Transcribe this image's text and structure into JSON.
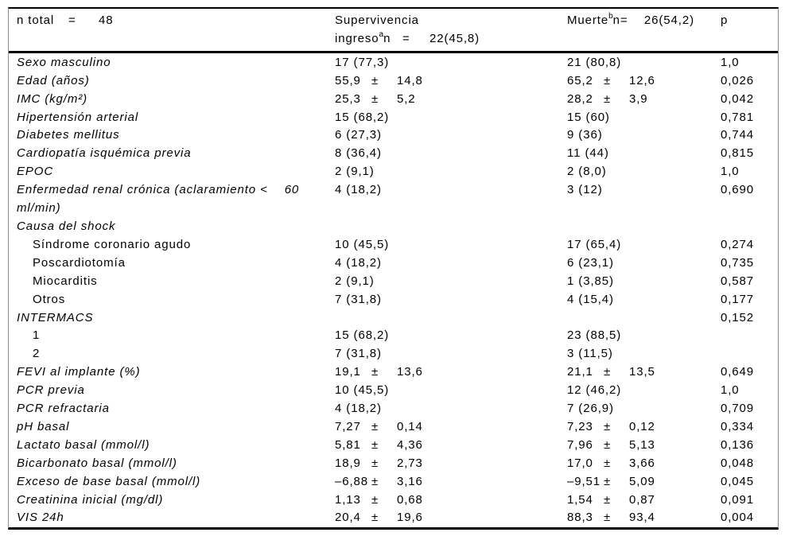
{
  "colors": {
    "background": "#ffffff",
    "text": "#000000",
    "heavy_rule": "#000000",
    "side_border": "#8f8f8f"
  },
  "table": {
    "header": {
      "col1": {
        "pre": "n total",
        "eq": "=",
        "val": "48"
      },
      "col2": {
        "line1": "Supervivencia",
        "pre": "ingreso",
        "sup": "a",
        "post": "n",
        "eq": "=",
        "val": "22(45,8)"
      },
      "col3": {
        "pre": "Muerte",
        "sup": "b",
        "post": "n",
        "eq": "=",
        "val": "26(54,2)"
      },
      "col4": "p"
    },
    "rows": [
      {
        "label": "Sexo masculino",
        "italic": true,
        "c1": "17 (77,3)",
        "c2": "21 (80,8)",
        "p": "1,0"
      },
      {
        "label": "Edad (años)",
        "italic": true,
        "c1": "55,9 ± 14,8",
        "c2": "65,2 ± 12,6",
        "p": "0,026"
      },
      {
        "label": "IMC (kg/m²)",
        "italic": true,
        "c1": "25,3 ± 5,2",
        "c2": "28,2 ± 3,9",
        "p": "0,042"
      },
      {
        "label": "Hipertensión arterial",
        "italic": true,
        "c1": "15 (68,2)",
        "c2": "15 (60)",
        "p": "0,781"
      },
      {
        "label": "Diabetes mellitus",
        "italic": true,
        "c1": "6 (27,3)",
        "c2": "9 (36)",
        "p": "0,744"
      },
      {
        "label": "Cardiopatía isquémica previa",
        "italic": true,
        "c1": "8 (36,4)",
        "c2": "11 (44)",
        "p": "0,815"
      },
      {
        "label": "EPOC",
        "italic": true,
        "c1": "2 (9,1)",
        "c2": "2 (8,0)",
        "p": "1,0"
      },
      {
        "label": "Enfermedad renal crónica (aclaramiento <  60\nml/min)",
        "italic": true,
        "c1": "4 (18,2)",
        "c2": "3 (12)",
        "p": "0,690"
      },
      {
        "label": "Causa del shock",
        "italic": true,
        "c1": "",
        "c2": "",
        "p": ""
      },
      {
        "label": "Síndrome coronario agudo",
        "indent": 1,
        "c1": "10 (45,5)",
        "c2": "17 (65,4)",
        "p": "0,274"
      },
      {
        "label": "Poscardiotomía",
        "indent": 1,
        "c1": "4 (18,2)",
        "c2": "6 (23,1)",
        "p": "0,735"
      },
      {
        "label": "Miocarditis",
        "indent": 1,
        "c1": "2 (9,1)",
        "c2": "1 (3,85)",
        "p": "0,587"
      },
      {
        "label": "Otros",
        "indent": 1,
        "c1": "7 (31,8)",
        "c2": "4 (15,4)",
        "p": "0,177"
      },
      {
        "label": "INTERMACS",
        "italic": true,
        "c1": "",
        "c2": "",
        "p": "0,152"
      },
      {
        "label": "1",
        "indent": 1,
        "c1": "15 (68,2)",
        "c2": "23 (88,5)",
        "p": ""
      },
      {
        "label": "2",
        "indent": 1,
        "c1": "7 (31,8)",
        "c2": "3 (11,5)",
        "p": ""
      },
      {
        "label": "FEVI al implante (%)",
        "italic": true,
        "c1": "19,1 ± 13,6",
        "c2": "21,1 ± 13,5",
        "p": "0,649"
      },
      {
        "label": "PCR previa",
        "italic": true,
        "c1": "10 (45,5)",
        "c2": "12 (46,2)",
        "p": "1,0"
      },
      {
        "label": "PCR refractaria",
        "italic": true,
        "c1": "4 (18,2)",
        "c2": "7 (26,9)",
        "p": "0,709"
      },
      {
        "label": "pH basal",
        "italic": true,
        "c1": "7,27 ± 0,14",
        "c2": "7,23 ± 0,12",
        "p": "0,334"
      },
      {
        "label": "Lactato basal (mmol/l)",
        "italic": true,
        "c1": "5,81 ± 4,36",
        "c2": "7,96 ± 5,13",
        "p": "0,136"
      },
      {
        "label": "Bicarbonato basal (mmol/l)",
        "italic": true,
        "c1": "18,9 ± 2,73",
        "c2": "17,0 ± 3,66",
        "p": "0,048"
      },
      {
        "label": "Exceso de base basal (mmol/l)",
        "italic": true,
        "c1": "–6,88 ± 3,16",
        "c2": "–9,51 ± 5,09",
        "p": "0,045"
      },
      {
        "label": "Creatinina inicial (mg/dl)",
        "italic": true,
        "c1": "1,13 ± 0,68",
        "c2": "1,54 ± 0,87",
        "p": "0,091"
      },
      {
        "label": "VIS 24h",
        "italic": true,
        "c1": "20,4 ± 19,6",
        "c2": "88,3 ± 93,4",
        "p": "0,004"
      }
    ]
  }
}
